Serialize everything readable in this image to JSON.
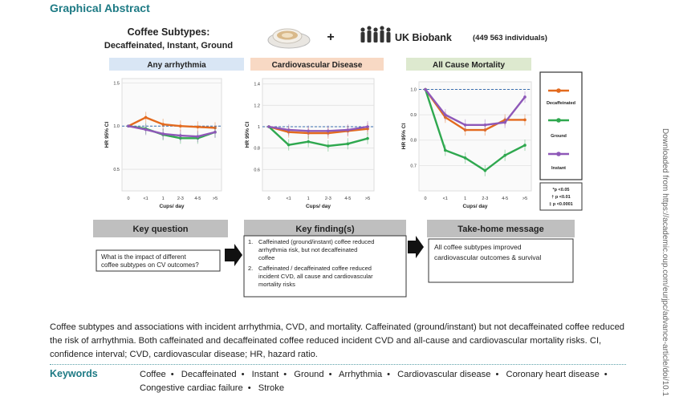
{
  "header": {
    "title": "Graphical Abstract"
  },
  "figure": {
    "top": {
      "coffee_title_line1": "Coffee Subtypes:",
      "coffee_title_line2": "Decaffeinated, Instant, Ground",
      "plus": "+",
      "biobank": "UK Biobank",
      "biobank_count": "(449 563 individuals)"
    },
    "panels": [
      {
        "title": "Any arrhythmia",
        "color": "#d9e6f5"
      },
      {
        "title": "Cardiovascular Disease",
        "color": "#f8d9c4"
      },
      {
        "title": "All Cause Mortality",
        "color": "#dde9cf"
      }
    ],
    "y_axis_label": "HR 95% CI",
    "x_axis_label": "Cups/ day",
    "x_ticks": [
      "0",
      "<1",
      "1",
      "2-3",
      "4-5",
      ">5"
    ],
    "legend": {
      "items": [
        "Decaffeinated",
        "Ground",
        "Instant"
      ]
    },
    "significance": {
      "p1": "*p <0.05",
      "p2": "† p <0.01",
      "p3": "‡ p <0.0001"
    },
    "boxes": {
      "key_question_title": "Key question",
      "key_question_text_1": "What is the impact of different",
      "key_question_text_2": "coffee subtypes on CV outcomes?",
      "key_finding_title": "Key finding(s)",
      "finding1_num": "1.",
      "finding1_line1": "Caffeinated (ground/instant) coffee reduced",
      "finding1_line2": "arrhythmia risk, but not decaffeinated",
      "finding1_line3": "coffee",
      "finding2_num": "2.",
      "finding2_line1": "Caffeinated / decaffeinated coffee reduced",
      "finding2_line2": "incident CVD, all cause and cardiovascular",
      "finding2_line3": "mortality risks",
      "takehome_title": "Take-home message",
      "takehome_line1": "All coffee subtypes improved",
      "takehome_line2": "cardiovascular outcomes & survival"
    }
  },
  "chart_data": [
    {
      "type": "line",
      "title": "Any arrhythmia",
      "xlabel": "Cups/ day",
      "ylabel": "HR 95% CI",
      "categories": [
        "0",
        "<1",
        "1",
        "2-3",
        "4-5",
        ">5"
      ],
      "yticks": [
        "1.5",
        "1.0",
        "0.5"
      ],
      "ylim": [
        0.25,
        1.55
      ],
      "series": [
        {
          "name": "Decaffeinated",
          "color": "#e36a1e",
          "values": [
            1.0,
            1.1,
            1.02,
            1.0,
            0.99,
            0.98
          ]
        },
        {
          "name": "Ground",
          "color": "#2fa84f",
          "values": [
            1.0,
            0.97,
            0.9,
            0.86,
            0.86,
            0.93
          ]
        },
        {
          "name": "Instant",
          "color": "#8e58b8",
          "values": [
            1.0,
            0.96,
            0.91,
            0.89,
            0.88,
            0.93
          ]
        }
      ]
    },
    {
      "type": "line",
      "title": "Cardiovascular Disease",
      "xlabel": "Cups/ day",
      "ylabel": "HR 95% CI",
      "categories": [
        "0",
        "<1",
        "1",
        "2-3",
        "4-5",
        ">5"
      ],
      "yticks": [
        "1.4",
        "1.2",
        "1",
        "0.8",
        "0.6"
      ],
      "ylim": [
        0.4,
        1.45
      ],
      "series": [
        {
          "name": "Decaffeinated",
          "color": "#e36a1e",
          "values": [
            1.0,
            0.95,
            0.94,
            0.94,
            0.96,
            0.98
          ]
        },
        {
          "name": "Ground",
          "color": "#2fa84f",
          "values": [
            1.0,
            0.83,
            0.86,
            0.82,
            0.84,
            0.89
          ]
        },
        {
          "name": "Instant",
          "color": "#8e58b8",
          "values": [
            1.0,
            0.97,
            0.96,
            0.96,
            0.97,
            1.0
          ]
        }
      ]
    },
    {
      "type": "line",
      "title": "All Cause Mortality",
      "xlabel": "Cups/ day",
      "ylabel": "HR 95% CI",
      "categories": [
        "0",
        "<1",
        "1",
        "2-3",
        "4-5",
        ">5"
      ],
      "yticks": [
        "1.0",
        "0.9",
        "0.8",
        "0.7"
      ],
      "ylim": [
        0.6,
        1.03
      ],
      "series": [
        {
          "name": "Decaffeinated",
          "color": "#e36a1e",
          "values": [
            1.0,
            0.89,
            0.84,
            0.84,
            0.88,
            0.88
          ]
        },
        {
          "name": "Ground",
          "color": "#2fa84f",
          "values": [
            1.0,
            0.76,
            0.73,
            0.68,
            0.74,
            0.78
          ]
        },
        {
          "name": "Instant",
          "color": "#8e58b8",
          "values": [
            1.0,
            0.9,
            0.86,
            0.86,
            0.87,
            0.97
          ]
        }
      ]
    }
  ],
  "sidebar": {
    "download_text": "Downloaded from https://academic.oup.com/eurjpc/advance-article/doi/10.1"
  },
  "caption": {
    "text": "Coffee subtypes and associations with incident arrhythmia, CVD, and mortality. Caffeinated (ground/instant) but not decaffeinated coffee reduced the risk of arrhythmia. Both caffeinated and decaffeinated coffee reduced incident CVD and all-cause and cardiovascular mortality risks. CI, confidence interval; CVD, cardiovascular disease; HR, hazard ratio."
  },
  "keywords": {
    "label": "Keywords",
    "items": [
      "Coffee",
      "Decaffeinated",
      "Instant",
      "Ground",
      "Arrhythmia",
      "Cardiovascular disease",
      "Coronary heart disease",
      "Congestive cardiac failure",
      "Stroke"
    ]
  }
}
